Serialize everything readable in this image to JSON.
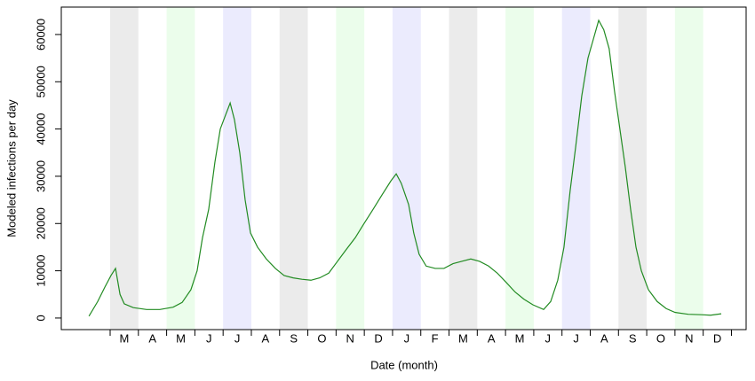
{
  "chart_data": {
    "type": "line",
    "ylabel": "Modeled infections per day",
    "xlabel": "Date (month)",
    "categories": [
      "M",
      "A",
      "M",
      "J",
      "J",
      "A",
      "S",
      "O",
      "N",
      "D",
      "J",
      "F",
      "M",
      "A",
      "M",
      "J",
      "J",
      "A",
      "S",
      "O",
      "N",
      "D"
    ],
    "band_colors": [
      "#ebebeb",
      null,
      "#ebfdeb",
      null,
      "#ebebfd",
      null,
      "#ebebeb",
      null,
      "#ebfdeb",
      null,
      "#ebebfd",
      null,
      "#ebebeb",
      null,
      "#ebfdeb",
      null,
      "#ebebfd",
      null,
      "#ebebeb",
      null,
      "#ebfdeb",
      null
    ],
    "xticks": [
      0,
      1,
      2,
      3,
      4,
      5,
      6,
      7,
      8,
      9,
      10,
      11,
      12,
      13,
      14,
      15,
      16,
      17,
      18,
      19,
      20,
      21,
      22
    ],
    "xlim": [
      -1.73,
      22.52
    ],
    "ylim": [
      -2450,
      65800
    ],
    "yticks": [
      0,
      10000,
      20000,
      30000,
      40000,
      50000,
      60000
    ],
    "color": "#228B22",
    "x": [
      -0.75,
      -0.44,
      -0.19,
      0.03,
      0.19,
      0.35,
      0.5,
      0.82,
      1.29,
      1.76,
      2.23,
      2.55,
      2.86,
      3.08,
      3.27,
      3.49,
      3.71,
      3.9,
      4.09,
      4.25,
      4.4,
      4.59,
      4.78,
      4.97,
      5.22,
      5.53,
      5.85,
      6.16,
      6.48,
      6.79,
      7.11,
      7.42,
      7.74,
      8.05,
      8.36,
      8.68,
      8.99,
      9.31,
      9.62,
      9.94,
      10.13,
      10.31,
      10.57,
      10.75,
      10.94,
      11.19,
      11.51,
      11.82,
      12.14,
      12.45,
      12.77,
      13.08,
      13.4,
      13.71,
      14.03,
      14.34,
      14.65,
      14.97,
      15.35,
      15.6,
      15.85,
      16.07,
      16.29,
      16.48,
      16.7,
      16.92,
      17.11,
      17.3,
      17.48,
      17.67,
      17.86,
      18.05,
      18.24,
      18.43,
      18.62,
      18.81,
      19.06,
      19.37,
      19.69,
      20.0,
      20.47,
      20.94,
      21.26,
      21.64
    ],
    "values": [
      400,
      3500,
      6500,
      9000,
      10500,
      5000,
      3000,
      2200,
      1800,
      1800,
      2300,
      3300,
      6000,
      10000,
      17000,
      23000,
      33000,
      40000,
      43000,
      45500,
      42000,
      35000,
      25000,
      18000,
      15000,
      12500,
      10500,
      9000,
      8500,
      8200,
      8000,
      8500,
      9500,
      12000,
      14500,
      17000,
      20000,
      23000,
      26000,
      29000,
      30500,
      28500,
      24000,
      18000,
      13500,
      11000,
      10500,
      10500,
      11500,
      12000,
      12500,
      12000,
      11000,
      9500,
      7500,
      5500,
      4000,
      2800,
      1800,
      3500,
      8000,
      15000,
      27000,
      36000,
      47000,
      55000,
      59000,
      63000,
      61000,
      57000,
      48000,
      40000,
      32000,
      23000,
      15000,
      10000,
      6000,
      3500,
      2000,
      1200,
      800,
      700,
      600,
      900
    ]
  }
}
